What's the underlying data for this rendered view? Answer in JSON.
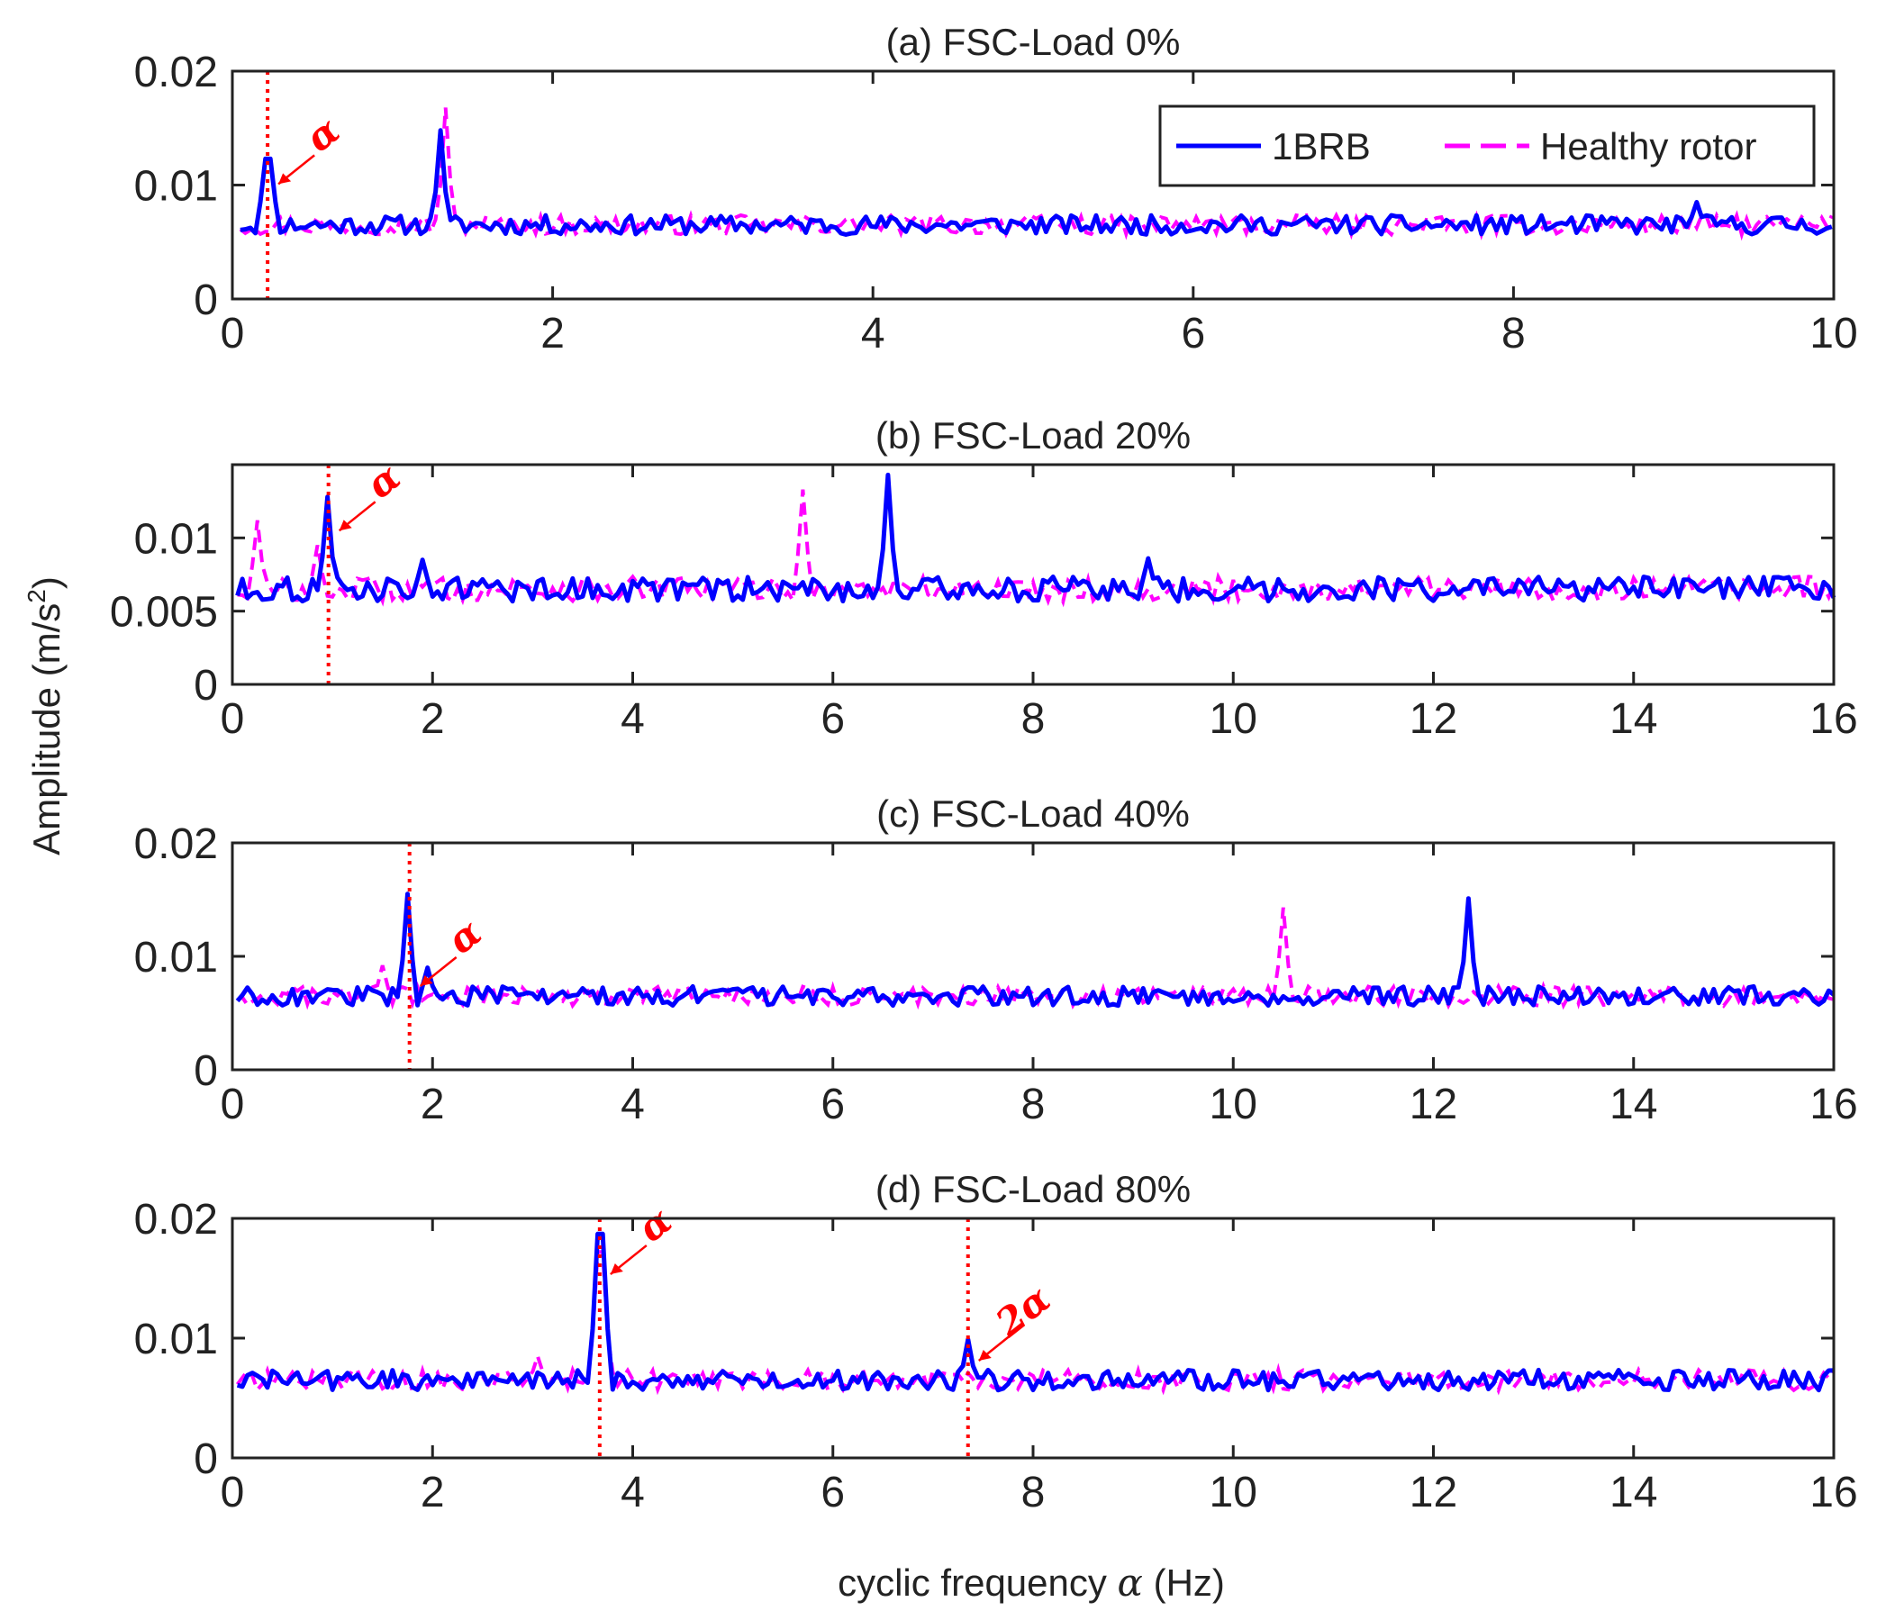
{
  "figure": {
    "ylabel": "Amplitude (m/s",
    "ylabel_sup": "2",
    "ylabel_close": ")",
    "xlabel_prefix": "cyclic frequency ",
    "xlabel_alpha": "α",
    "xlabel_suffix": " (Hz)"
  },
  "legend": {
    "series1": "1BRB",
    "series2": "Healthy rotor"
  },
  "colors": {
    "brb": "#0000ff",
    "healthy": "#ff00ff",
    "marker": "#ff0000",
    "axis": "#222222"
  },
  "chart_data": [
    {
      "type": "line",
      "title": "(a) FSC-Load 0%",
      "xlim": [
        0,
        10
      ],
      "ylim": [
        0,
        0.02
      ],
      "xticks": [
        0,
        2,
        4,
        6,
        8,
        10
      ],
      "xtick_labels": [
        "0",
        "2",
        "4",
        "6",
        "8",
        "10"
      ],
      "yticks": [
        0,
        0.01,
        0.02
      ],
      "ytick_labels": [
        "0",
        "0.01",
        "0.02"
      ],
      "base": 0.0065,
      "peaks_brb": [
        [
          0.22,
          0.0123
        ],
        [
          1.31,
          0.0148
        ],
        [
          9.15,
          0.0085
        ]
      ],
      "peaks_healthy": [
        [
          1.33,
          0.0168
        ]
      ],
      "markers": [
        {
          "x": 0.22,
          "label": "α"
        }
      ]
    },
    {
      "type": "line",
      "title": "(b) FSC-Load 20%",
      "xlim": [
        0,
        16
      ],
      "ylim": [
        0,
        0.015
      ],
      "xticks": [
        0,
        2,
        4,
        6,
        8,
        10,
        12,
        14,
        16
      ],
      "xtick_labels": [
        "0",
        "2",
        "4",
        "6",
        "8",
        "10",
        "12",
        "14",
        "16"
      ],
      "yticks": [
        0,
        0.005,
        0.01
      ],
      "ytick_labels": [
        "0",
        "0.005",
        "0.01"
      ],
      "base": 0.0065,
      "peaks_brb": [
        [
          0.96,
          0.0128
        ],
        [
          6.55,
          0.0143
        ],
        [
          1.9,
          0.0085
        ],
        [
          9.15,
          0.0086
        ]
      ],
      "peaks_healthy": [
        [
          0.25,
          0.0112
        ],
        [
          5.7,
          0.0133
        ],
        [
          0.85,
          0.0095
        ]
      ],
      "markers": [
        {
          "x": 0.96,
          "label": "α"
        }
      ]
    },
    {
      "type": "line",
      "title": "(c) FSC-Load 40%",
      "xlim": [
        0,
        16
      ],
      "ylim": [
        0,
        0.02
      ],
      "xticks": [
        0,
        2,
        4,
        6,
        8,
        10,
        12,
        14,
        16
      ],
      "xtick_labels": [
        "0",
        "2",
        "4",
        "6",
        "8",
        "10",
        "12",
        "14",
        "16"
      ],
      "yticks": [
        0,
        0.01,
        0.02
      ],
      "ytick_labels": [
        "0",
        "0.01",
        "0.02"
      ],
      "base": 0.0065,
      "peaks_brb": [
        [
          1.77,
          0.0155
        ],
        [
          12.37,
          0.0151
        ],
        [
          1.97,
          0.009
        ]
      ],
      "peaks_healthy": [
        [
          10.52,
          0.0143
        ],
        [
          1.5,
          0.0092
        ]
      ],
      "markers": [
        {
          "x": 1.77,
          "label": "α"
        }
      ]
    },
    {
      "type": "line",
      "title": "(d) FSC-Load 80%",
      "xlim": [
        0,
        16
      ],
      "ylim": [
        0,
        0.02
      ],
      "xticks": [
        0,
        2,
        4,
        6,
        8,
        10,
        12,
        14,
        16
      ],
      "xtick_labels": [
        "0",
        "2",
        "4",
        "6",
        "8",
        "10",
        "12",
        "14",
        "16"
      ],
      "yticks": [
        0,
        0.01,
        0.02
      ],
      "ytick_labels": [
        "0",
        "0.01",
        "0.02"
      ],
      "base": 0.0065,
      "peaks_brb": [
        [
          3.67,
          0.0187
        ],
        [
          7.35,
          0.0099
        ]
      ],
      "peaks_healthy": [
        [
          3.05,
          0.0085
        ],
        [
          3.67,
          0.0172
        ]
      ],
      "markers": [
        {
          "x": 3.67,
          "label": "α"
        },
        {
          "x": 7.35,
          "label": "2α"
        }
      ]
    }
  ]
}
